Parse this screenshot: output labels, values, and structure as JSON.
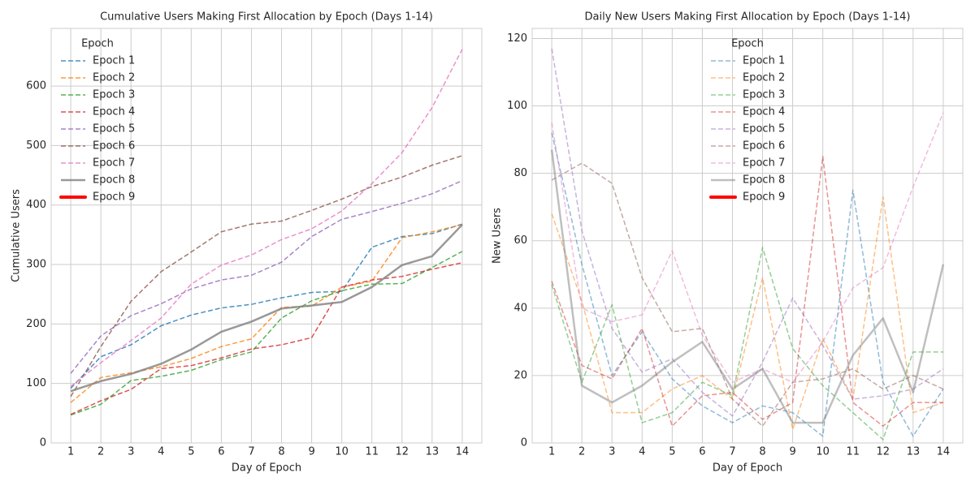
{
  "chart_data": [
    {
      "type": "line",
      "title": "Cumulative Users Making First Allocation by Epoch (Days 1-14)",
      "xlabel": "Day of Epoch",
      "ylabel": "Cumulative Users",
      "x": [
        1,
        2,
        3,
        4,
        5,
        6,
        7,
        8,
        9,
        10,
        11,
        12,
        13,
        14
      ],
      "xlim": [
        0.35,
        14.65
      ],
      "xticks": [
        1,
        2,
        3,
        4,
        5,
        6,
        7,
        8,
        9,
        10,
        11,
        12,
        13,
        14
      ],
      "ylim": [
        0,
        697
      ],
      "yticks": [
        0,
        100,
        200,
        300,
        400,
        500,
        600
      ],
      "grid": true,
      "legend_title": "Epoch",
      "legend": "upper left",
      "line_alpha": 0.8,
      "series": [
        {
          "name": "Epoch 1",
          "color": "#1f77b4",
          "style": "dashed",
          "linewidth": 1.5,
          "values": [
            92,
            145,
            165,
            197,
            215,
            227,
            233,
            244,
            253,
            255,
            329,
            347,
            352,
            368
          ]
        },
        {
          "name": "Epoch 2",
          "color": "#ff7f0e",
          "style": "dashed",
          "linewidth": 1.5,
          "values": [
            68,
            110,
            118,
            128,
            142,
            162,
            175,
            228,
            230,
            262,
            272,
            345,
            355,
            367
          ]
        },
        {
          "name": "Epoch 3",
          "color": "#2ca02c",
          "style": "dashed",
          "linewidth": 1.5,
          "values": [
            47,
            65,
            105,
            112,
            122,
            140,
            153,
            210,
            239,
            256,
            267,
            268,
            295,
            322
          ]
        },
        {
          "name": "Epoch 4",
          "color": "#d62728",
          "style": "dashed",
          "linewidth": 1.5,
          "values": [
            48,
            71,
            90,
            125,
            130,
            143,
            158,
            165,
            177,
            262,
            274,
            280,
            292,
            303
          ]
        },
        {
          "name": "Epoch 5",
          "color": "#9467bd",
          "style": "dashed",
          "linewidth": 1.5,
          "values": [
            117,
            180,
            214,
            234,
            259,
            274,
            282,
            304,
            347,
            376,
            389,
            403,
            419,
            441
          ]
        },
        {
          "name": "Epoch 6",
          "color": "#8c564b",
          "style": "dashed",
          "linewidth": 1.5,
          "values": [
            78,
            162,
            238,
            288,
            321,
            355,
            368,
            373,
            391,
            410,
            431,
            447,
            467,
            483
          ]
        },
        {
          "name": "Epoch 7",
          "color": "#e377c2",
          "style": "dashed",
          "linewidth": 1.5,
          "values": [
            95,
            135,
            172,
            210,
            267,
            299,
            316,
            342,
            360,
            390,
            436,
            488,
            564,
            662
          ]
        },
        {
          "name": "Epoch 8",
          "color": "#7f7f7f",
          "style": "solid",
          "linewidth": 2.5,
          "values": [
            87,
            104,
            116,
            133,
            157,
            187,
            204,
            226,
            231,
            237,
            262,
            299,
            314,
            367
          ]
        },
        {
          "name": "Epoch 9",
          "color": "#ff0000",
          "style": "solid",
          "linewidth": 4,
          "values": [
            null,
            null,
            null,
            null,
            null,
            null,
            null,
            null,
            null,
            null,
            null,
            null,
            null,
            null
          ]
        }
      ]
    },
    {
      "type": "line",
      "title": "Daily New Users Making First Allocation by Epoch (Days 1-14)",
      "xlabel": "Day of Epoch",
      "ylabel": "New Users",
      "x": [
        1,
        2,
        3,
        4,
        5,
        6,
        7,
        8,
        9,
        10,
        11,
        12,
        13,
        14
      ],
      "xlim": [
        0.35,
        14.65
      ],
      "xticks": [
        1,
        2,
        3,
        4,
        5,
        6,
        7,
        8,
        9,
        10,
        11,
        12,
        13,
        14
      ],
      "ylim": [
        0,
        123
      ],
      "yticks": [
        0,
        20,
        40,
        60,
        80,
        100,
        120
      ],
      "grid": true,
      "legend_title": "Epoch",
      "legend": "upper center",
      "line_alpha": 0.5,
      "series": [
        {
          "name": "Epoch 1",
          "color": "#1f77b4",
          "style": "dashed",
          "linewidth": 1.5,
          "values": [
            92,
            53,
            20,
            33,
            19,
            11,
            6,
            11,
            9,
            2,
            75,
            18,
            2,
            16
          ]
        },
        {
          "name": "Epoch 2",
          "color": "#ff7f0e",
          "style": "dashed",
          "linewidth": 1.5,
          "values": [
            68,
            42,
            9,
            9,
            16,
            20,
            13,
            49,
            4,
            31,
            13,
            73,
            9,
            12
          ]
        },
        {
          "name": "Epoch 3",
          "color": "#2ca02c",
          "style": "dashed",
          "linewidth": 1.5,
          "values": [
            47,
            18,
            41,
            6,
            9,
            18,
            14,
            58,
            28,
            17,
            9,
            1,
            27,
            27
          ]
        },
        {
          "name": "Epoch 4",
          "color": "#d62728",
          "style": "dashed",
          "linewidth": 1.5,
          "values": [
            48,
            23,
            19,
            34,
            5,
            14,
            15,
            7,
            12,
            85,
            12,
            5,
            12,
            12
          ]
        },
        {
          "name": "Epoch 5",
          "color": "#9467bd",
          "style": "dashed",
          "linewidth": 1.5,
          "values": [
            117,
            63,
            34,
            21,
            25,
            15,
            8,
            24,
            43,
            29,
            13,
            14,
            16,
            22
          ]
        },
        {
          "name": "Epoch 6",
          "color": "#8c564b",
          "style": "dashed",
          "linewidth": 1.5,
          "values": [
            78,
            83,
            77,
            49,
            33,
            34,
            13,
            5,
            18,
            19,
            22,
            16,
            20,
            16
          ]
        },
        {
          "name": "Epoch 7",
          "color": "#e377c2",
          "style": "dashed",
          "linewidth": 1.5,
          "values": [
            95,
            40,
            36,
            38,
            57,
            32,
            18,
            22,
            18,
            30,
            46,
            52,
            76,
            98
          ]
        },
        {
          "name": "Epoch 8",
          "color": "#7f7f7f",
          "style": "solid",
          "linewidth": 2.5,
          "values": [
            87,
            17,
            12,
            17,
            24,
            30,
            16,
            22,
            6,
            6,
            26,
            37,
            15,
            53
          ]
        },
        {
          "name": "Epoch 9",
          "color": "#ff0000",
          "style": "solid",
          "linewidth": 4,
          "values": [
            null,
            null,
            null,
            null,
            null,
            null,
            null,
            null,
            null,
            null,
            null,
            null,
            null,
            null
          ]
        }
      ]
    }
  ]
}
